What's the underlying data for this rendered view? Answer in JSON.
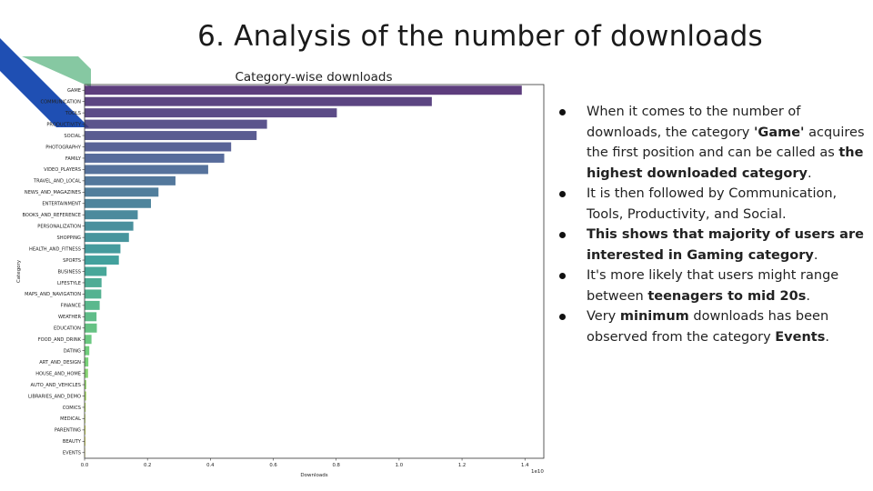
{
  "slide": {
    "title": "6. Analysis of the number of downloads"
  },
  "bullets": [
    {
      "parts": [
        {
          "t": "When it comes to the number of downloads, the category ",
          "b": false
        },
        {
          "t": "'Game'",
          "b": true
        },
        {
          "t": " acquires the first position and can be called as ",
          "b": false
        },
        {
          "t": "the highest downloaded category",
          "b": true
        },
        {
          "t": ".",
          "b": false
        }
      ]
    },
    {
      "parts": [
        {
          "t": "It is then followed by Communication, Tools, Productivity, and Social.",
          "b": false
        }
      ]
    },
    {
      "parts": [
        {
          "t": "This shows that majority of users are interested in Gaming category",
          "b": true
        },
        {
          "t": ".",
          "b": false
        }
      ]
    },
    {
      "parts": [
        {
          "t": "It's more likely that users might range between ",
          "b": false
        },
        {
          "t": "teenagers to mid 20s",
          "b": true
        },
        {
          "t": ".",
          "b": false
        }
      ]
    },
    {
      "parts": [
        {
          "t": "Very ",
          "b": false
        },
        {
          "t": "minimum",
          "b": true
        },
        {
          "t": " downloads has been observed from the category ",
          "b": false
        },
        {
          "t": "Events",
          "b": true
        },
        {
          "t": ".",
          "b": false
        }
      ]
    }
  ],
  "chart_data": {
    "type": "bar",
    "orientation": "horizontal",
    "title": "Category-wise downloads",
    "xlabel": "Downloads",
    "ylabel": "Category",
    "x_offset_label": "1e10",
    "xlim": [
      0,
      1.46
    ],
    "xticks": [
      "0.0",
      "0.2",
      "0.4",
      "0.6",
      "0.8",
      "1.0",
      "1.2",
      "1.4"
    ],
    "grid": false,
    "palette": "viridis",
    "categories": [
      "GAME",
      "COMMUNICATION",
      "TOOLS",
      "PRODUCTIVITY",
      "SOCIAL",
      "PHOTOGRAPHY",
      "FAMILY",
      "VIDEO_PLAYERS",
      "TRAVEL_AND_LOCAL",
      "NEWS_AND_MAGAZINES",
      "ENTERTAINMENT",
      "BOOKS_AND_REFERENCE",
      "PERSONALIZATION",
      "SHOPPING",
      "HEALTH_AND_FITNESS",
      "SPORTS",
      "BUSINESS",
      "LIFESTYLE",
      "MAPS_AND_NAVIGATION",
      "FINANCE",
      "WEATHER",
      "EDUCATION",
      "FOOD_AND_DRINK",
      "DATING",
      "ART_AND_DESIGN",
      "HOUSE_AND_HOME",
      "AUTO_AND_VEHICLES",
      "LIBRARIES_AND_DEMO",
      "COMICS",
      "MEDICAL",
      "PARENTING",
      "BEAUTY",
      "EVENTS"
    ],
    "values": [
      1.39,
      1.104,
      0.802,
      0.58,
      0.547,
      0.466,
      0.444,
      0.393,
      0.289,
      0.235,
      0.211,
      0.169,
      0.155,
      0.141,
      0.114,
      0.109,
      0.07,
      0.054,
      0.053,
      0.048,
      0.038,
      0.039,
      0.022,
      0.015,
      0.012,
      0.011,
      0.0054,
      0.0052,
      0.0035,
      0.0026,
      0.0031,
      0.0027,
      0.0016
    ]
  }
}
